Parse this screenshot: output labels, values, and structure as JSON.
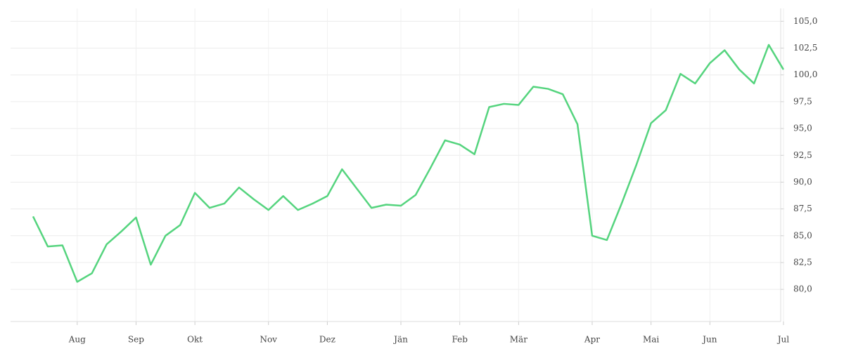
{
  "chart_data": {
    "type": "line",
    "categories": [
      null,
      null,
      null,
      "Aug",
      null,
      null,
      null,
      "Sep",
      null,
      null,
      null,
      "Okt",
      null,
      null,
      null,
      null,
      "Nov",
      null,
      null,
      null,
      "Dez",
      null,
      null,
      null,
      null,
      "Jän",
      null,
      null,
      null,
      "Feb",
      null,
      null,
      null,
      "Mär",
      null,
      null,
      null,
      null,
      "Apr",
      null,
      null,
      null,
      "Mai",
      null,
      null,
      null,
      "Jun",
      null,
      null,
      null,
      null,
      "Jul"
    ],
    "series": [
      {
        "color": "#55d47e",
        "values": [
          86.8,
          84.0,
          84.1,
          80.7,
          81.5,
          84.2,
          85.4,
          86.7,
          82.3,
          85.0,
          86.0,
          89.0,
          87.6,
          88.0,
          89.5,
          88.4,
          87.4,
          88.7,
          87.4,
          88.0,
          88.7,
          91.2,
          89.4,
          87.6,
          87.9,
          87.8,
          88.8,
          91.3,
          93.9,
          93.5,
          92.6,
          97.0,
          97.3,
          97.2,
          98.9,
          98.7,
          98.2,
          95.4,
          85.0,
          84.6,
          88.0,
          91.6,
          95.5,
          96.7,
          100.1,
          99.2,
          101.1,
          102.3,
          100.5,
          99.2,
          102.8,
          100.5
        ]
      }
    ],
    "ylim": [
      77,
      106.2
    ],
    "yticks": [
      {
        "value": 80,
        "label": "80,0"
      },
      {
        "value": 82.5,
        "label": "82,5"
      },
      {
        "value": 85,
        "label": "85,0"
      },
      {
        "value": 87.5,
        "label": "87,5"
      },
      {
        "value": 90,
        "label": "90,0"
      },
      {
        "value": 92.5,
        "label": "92,5"
      },
      {
        "value": 95,
        "label": "95,0"
      },
      {
        "value": 97.5,
        "label": "97,5"
      },
      {
        "value": 100,
        "label": "100,0"
      },
      {
        "value": 102.5,
        "label": "102,5"
      },
      {
        "value": 105,
        "label": "105,0"
      }
    ],
    "grid": true
  }
}
